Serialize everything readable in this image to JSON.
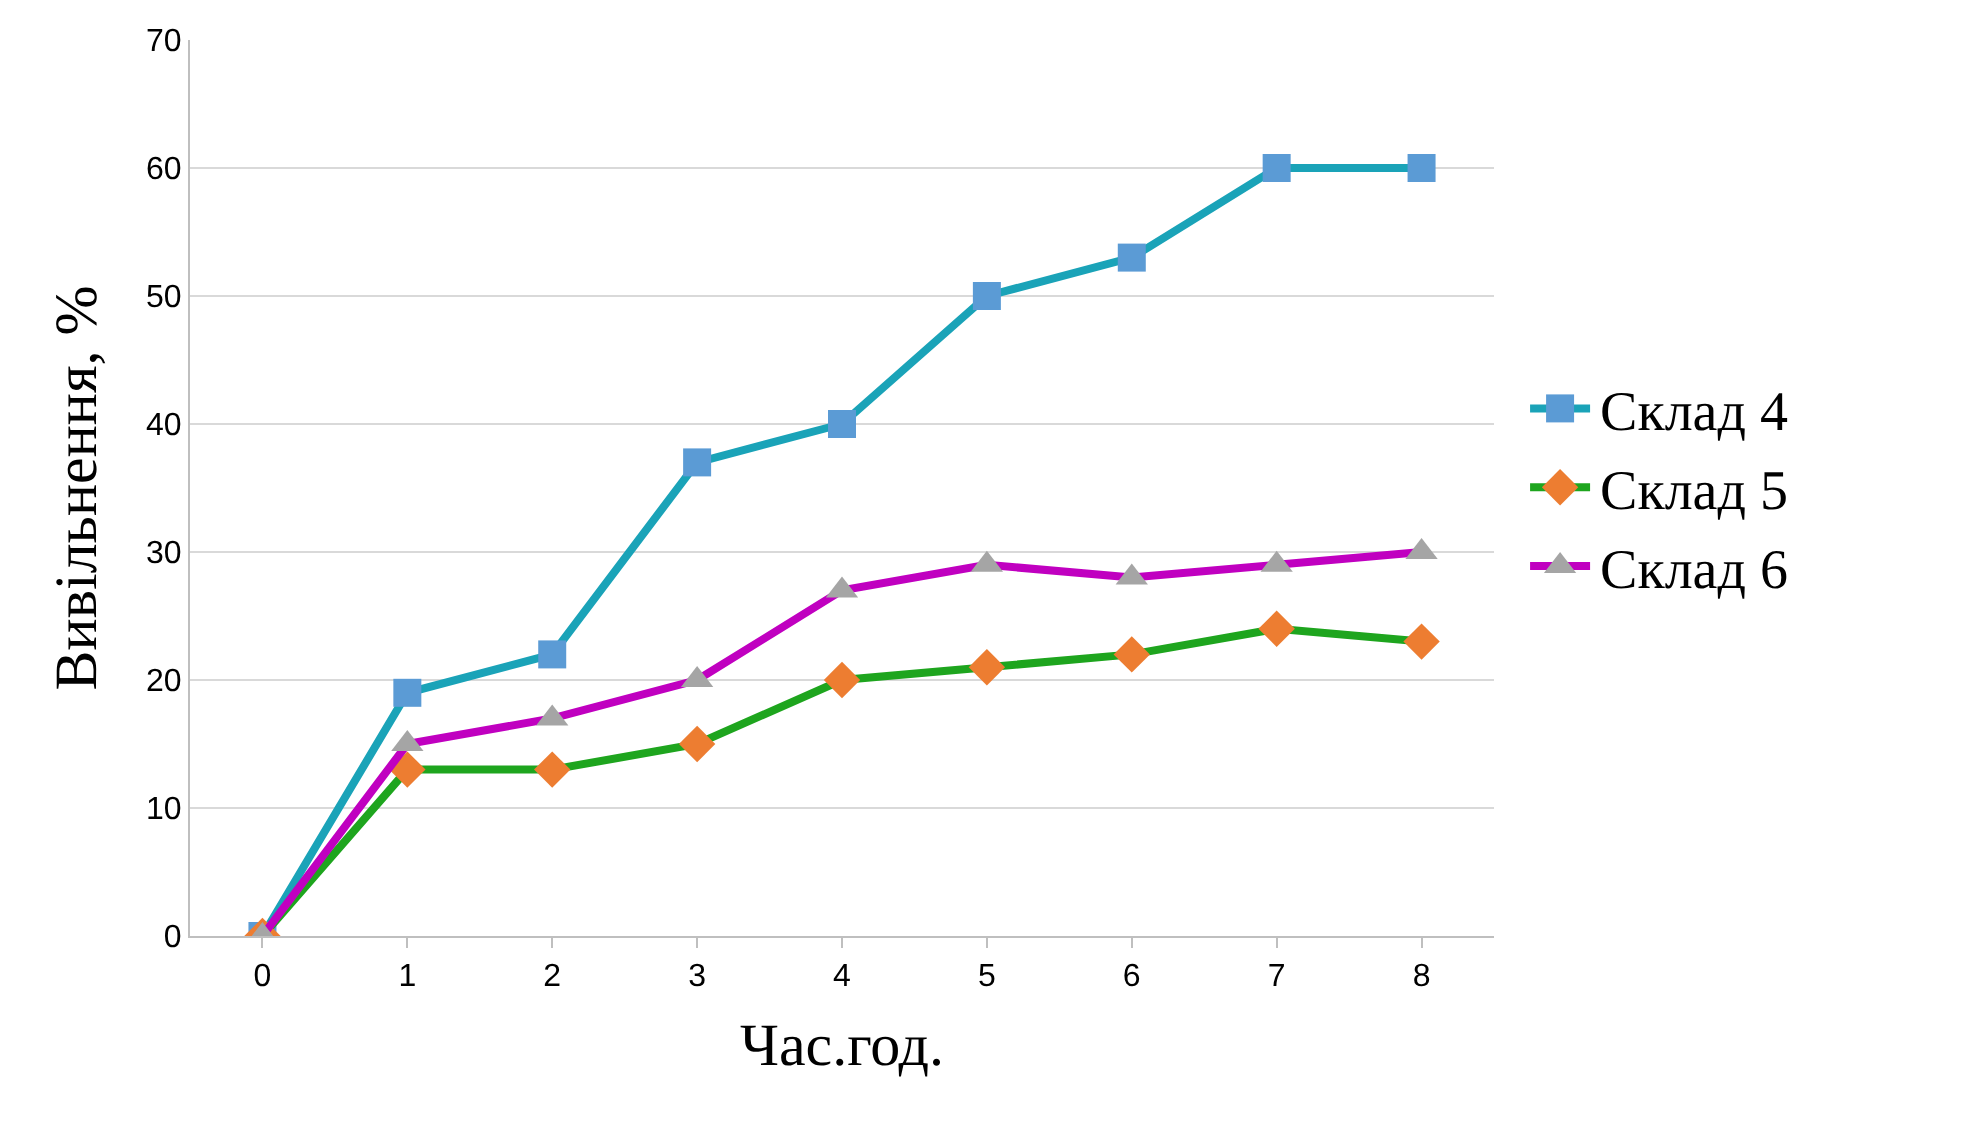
{
  "chart_data": {
    "type": "line",
    "xlabel": "Час.год.",
    "ylabel": "Вивільнення, %",
    "categories": [
      "0",
      "1",
      "2",
      "3",
      "4",
      "5",
      "6",
      "7",
      "8"
    ],
    "series": [
      {
        "name": "Склад 4",
        "color": "#1aa3b8",
        "colors": [
          "#5b9bd5",
          "#5b9bd5",
          "#5b9bd5",
          "#5b9bd5",
          "#5b9bd5",
          "#5b9bd5",
          "#5b9bd5",
          "#5b9bd5",
          "#5b9bd5"
        ],
        "marker": "square",
        "values": [
          0,
          19,
          22,
          37,
          40,
          50,
          53,
          60,
          60
        ]
      },
      {
        "name": "Склад 5",
        "color": "#1ea51e",
        "colors": [
          "#ed7d31",
          "#ed7d31",
          "#ed7d31",
          "#ed7d31",
          "#ed7d31",
          "#ed7d31",
          "#ed7d31",
          "#ed7d31",
          "#ed7d31"
        ],
        "marker": "diamond",
        "values": [
          0,
          13,
          13,
          15,
          20,
          21,
          22,
          24,
          23
        ]
      },
      {
        "name": "Склад 6",
        "color": "#c000c0",
        "colors": [
          "#a5a5a5",
          "#a5a5a5",
          "#a5a5a5",
          "#a5a5a5",
          "#a5a5a5",
          "#a5a5a5",
          "#a5a5a5",
          "#a5a5a5",
          "#a5a5a5"
        ],
        "marker": "triangle",
        "values": [
          0,
          15,
          17,
          20,
          27,
          29,
          28,
          29,
          30
        ]
      }
    ],
    "ylim": [
      0,
      70
    ],
    "yticks": [
      0,
      10,
      20,
      30,
      40,
      50,
      60,
      70
    ],
    "grid": "y",
    "legend": "right",
    "line_style": "solid"
  }
}
